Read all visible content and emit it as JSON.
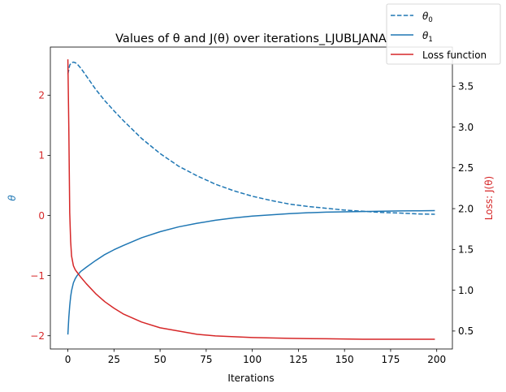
{
  "chart_data": {
    "type": "line",
    "title": "Values of θ and J(θ) over iterations_LJUBLJANA",
    "xlabel": "Iterations",
    "ylabel_left": "θ",
    "ylabel_right": "Loss: J(θ)",
    "xlim": [
      -9.5,
      208.5
    ],
    "ylim_left": [
      -2.22,
      2.8
    ],
    "ylim_right": [
      0.28,
      3.98
    ],
    "x_ticks": [
      0,
      25,
      50,
      75,
      100,
      125,
      150,
      175,
      200
    ],
    "y_left_ticks": [
      -2,
      -1,
      0,
      1,
      2
    ],
    "y_right_ticks": [
      0.5,
      1.0,
      1.5,
      2.0,
      2.5,
      3.0,
      3.5
    ],
    "y_left_tick_labels": [
      "−2",
      "−1",
      "0",
      "1",
      "2"
    ],
    "y_right_tick_labels": [
      "0.5",
      "1.0",
      "1.5",
      "2.0",
      "2.5",
      "3.0",
      "3.5"
    ],
    "grid": false,
    "legend_position": "top-right",
    "colors": {
      "blue": "#1f77b4",
      "red": "#d62728",
      "axis": "#000000",
      "left_tick_labels": "#d62728"
    },
    "series": [
      {
        "name": "θ0",
        "axis": "left",
        "style": "dashed",
        "color": "#1f77b4",
        "x": [
          0,
          1,
          2,
          3,
          4,
          5,
          7,
          10,
          15,
          20,
          25,
          30,
          40,
          50,
          60,
          70,
          80,
          90,
          100,
          110,
          120,
          130,
          140,
          150,
          160,
          170,
          180,
          190,
          199
        ],
        "y": [
          2.35,
          2.5,
          2.54,
          2.55,
          2.54,
          2.52,
          2.45,
          2.32,
          2.1,
          1.91,
          1.74,
          1.58,
          1.28,
          1.03,
          0.82,
          0.66,
          0.52,
          0.41,
          0.32,
          0.25,
          0.19,
          0.15,
          0.12,
          0.09,
          0.07,
          0.05,
          0.04,
          0.025,
          0.02
        ]
      },
      {
        "name": "θ1",
        "axis": "left",
        "style": "solid",
        "color": "#1f77b4",
        "x": [
          0,
          0.5,
          1,
          1.5,
          2,
          3,
          4,
          5,
          7,
          10,
          15,
          20,
          25,
          30,
          40,
          50,
          60,
          70,
          80,
          90,
          100,
          110,
          120,
          130,
          140,
          150,
          160,
          170,
          180,
          190,
          199
        ],
        "y": [
          -1.98,
          -1.7,
          -1.5,
          -1.35,
          -1.25,
          -1.12,
          -1.05,
          -1.0,
          -0.93,
          -0.86,
          -0.75,
          -0.65,
          -0.57,
          -0.5,
          -0.37,
          -0.27,
          -0.19,
          -0.13,
          -0.08,
          -0.04,
          -0.01,
          0.01,
          0.03,
          0.045,
          0.055,
          0.06,
          0.065,
          0.07,
          0.075,
          0.078,
          0.08
        ]
      },
      {
        "name": "Loss function",
        "axis": "right",
        "style": "solid",
        "color": "#d62728",
        "x": [
          0,
          0.5,
          1,
          1.5,
          2,
          3,
          4,
          5,
          7,
          10,
          15,
          20,
          25,
          30,
          40,
          50,
          60,
          70,
          80,
          90,
          100,
          120,
          140,
          160,
          180,
          199
        ],
        "y": [
          3.83,
          3.0,
          1.95,
          1.6,
          1.42,
          1.3,
          1.25,
          1.22,
          1.16,
          1.08,
          0.96,
          0.86,
          0.78,
          0.71,
          0.61,
          0.54,
          0.5,
          0.46,
          0.44,
          0.43,
          0.42,
          0.41,
          0.405,
          0.4,
          0.4,
          0.4
        ]
      }
    ],
    "legend_labels": [
      "θ",
      "θ",
      "Loss function"
    ],
    "legend_label_subscripts": [
      "0",
      "1",
      ""
    ]
  }
}
